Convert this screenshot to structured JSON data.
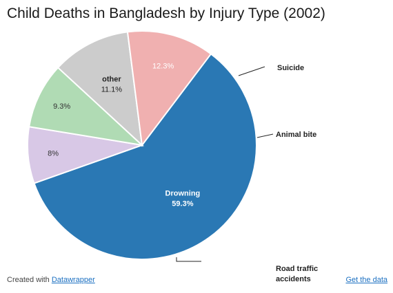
{
  "chart_data": {
    "type": "pie",
    "title": "Child Deaths in Bangladesh by Injury Type (2002)",
    "slices": [
      {
        "label": "Drowning",
        "value": 59.3,
        "value_label": "59.3%",
        "color": "#2a78b4",
        "label_text_color": "#ffffff",
        "label_placement": "inside",
        "show_name_inside": true
      },
      {
        "label": "Suicide",
        "value": 8,
        "value_label": "8%",
        "color": "#d8c8e6",
        "label_text_color": "#333333",
        "label_placement": "outside"
      },
      {
        "label": "Animal bite",
        "value": 9.3,
        "value_label": "9.3%",
        "color": "#b0dbb4",
        "label_text_color": "#333333",
        "label_placement": "outside"
      },
      {
        "label": "other",
        "value": 11.1,
        "value_label": "11.1%",
        "color": "#cccccc",
        "label_text_color": "#222222",
        "label_placement": "inside",
        "show_name_inside": true
      },
      {
        "label": "Road traffic accidents",
        "value": 12.3,
        "value_label": "12.3%",
        "color": "#f0b0b0",
        "label_text_color": "#ffffff",
        "label_placement": "outside"
      }
    ]
  },
  "footer": {
    "created_with": "Created with",
    "datawrapper_link": "Datawrapper",
    "get_data_link": "Get the data"
  }
}
